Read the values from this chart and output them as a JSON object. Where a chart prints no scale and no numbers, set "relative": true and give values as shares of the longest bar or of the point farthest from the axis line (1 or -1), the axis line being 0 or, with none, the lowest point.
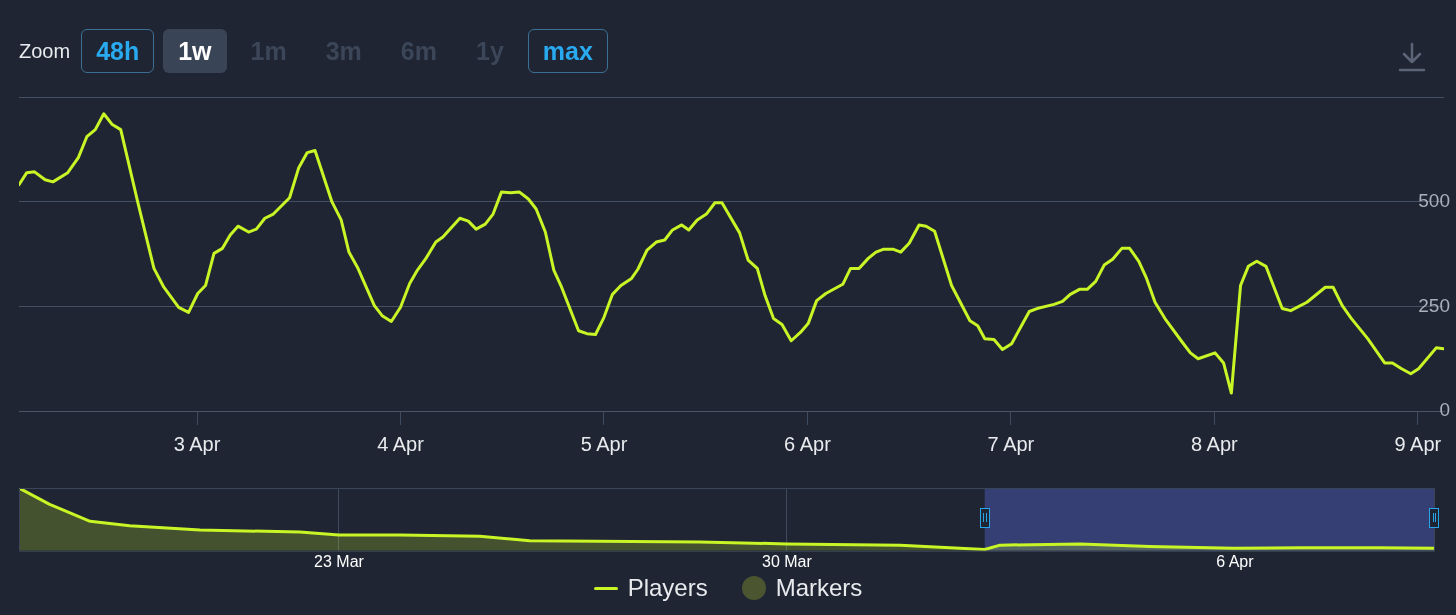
{
  "chart_data": [
    {
      "type": "line",
      "annotations": [
        "Zoom",
        "48h",
        "1w",
        "1m",
        "3m",
        "6m",
        "1y",
        "max"
      ],
      "xlim": [
        "--04-02T03:00",
        "--04-09T03:05"
      ],
      "xticks": [
        {
          "value": "--04-03",
          "label": "3 Apr"
        },
        {
          "value": "--04-04",
          "label": "4 Apr"
        },
        {
          "value": "--04-05",
          "label": "5 Apr"
        },
        {
          "value": "--04-06",
          "label": "6 Apr"
        },
        {
          "value": "--04-07",
          "label": "7 Apr"
        },
        {
          "value": "--04-08",
          "label": "8 Apr"
        },
        {
          "value": "--04-09",
          "label": "9 Apr"
        }
      ],
      "ylim": [
        0,
        750
      ],
      "yticks": [
        0,
        250,
        500,
        {
          "value": 750,
          "label": null
        }
      ],
      "grid": "y",
      "legend": "bottom",
      "marker": "none",
      "series": [
        {
          "name": "Players",
          "color": "#c8f526",
          "x": [
            "--04-02T03:00",
            "--04-02T03:55",
            "--04-02T04:50",
            "--04-02T06:05",
            "--04-02T07:00",
            "--04-02T08:45",
            "--04-02T10:00",
            "--04-02T11:00",
            "--04-02T12:00",
            "--04-02T13:00",
            "--04-02T14:00",
            "--04-02T15:00",
            "--04-02T17:00",
            "--04-02T18:55",
            "--04-02T20:05",
            "--04-02T21:50",
            "--04-02T23:00",
            "--04-03T00:05",
            "--04-03T01:00",
            "--04-03T02:00",
            "--04-03T03:00",
            "--04-03T03:55",
            "--04-03T04:50",
            "--04-03T06:05",
            "--04-03T07:00",
            "--04-03T08:00",
            "--04-03T09:00",
            "--04-03T10:55",
            "--04-03T12:00",
            "--04-03T13:00",
            "--04-03T13:55",
            "--04-03T15:55",
            "--04-03T17:00",
            "--04-03T17:55",
            "--04-03T18:55",
            "--04-03T20:55",
            "--04-03T21:50",
            "--04-03T22:55",
            "--04-04T00:00",
            "--04-04T01:05",
            "--04-04T02:00",
            "--04-04T03:00",
            "--04-04T04:10",
            "--04-04T05:00",
            "--04-04T07:00",
            "--04-04T08:00",
            "--04-04T08:55",
            "--04-04T10:00",
            "--04-04T10:55",
            "--04-04T11:55",
            "--04-04T13:00",
            "--04-04T14:00",
            "--04-04T15:05",
            "--04-04T16:00",
            "--04-04T17:05",
            "--04-04T18:05",
            "--04-04T19:00",
            "--04-04T21:00",
            "--04-04T22:00",
            "--04-04T23:00",
            "--04-05T00:00",
            "--04-05T01:00",
            "--04-05T02:00",
            "--04-05T03:15",
            "--04-05T04:00",
            "--04-05T05:05",
            "--04-05T06:10",
            "--04-05T07:10",
            "--04-05T08:05",
            "--04-05T09:10",
            "--04-05T10:00",
            "--04-05T11:00",
            "--04-05T12:05",
            "--04-05T13:05",
            "--04-05T13:55",
            "--04-05T16:00",
            "--04-05T17:00",
            "--04-05T18:05",
            "--04-05T19:00",
            "--04-05T20:00",
            "--04-05T21:00",
            "--04-05T22:05",
            "--04-05T23:10",
            "--04-06T00:05",
            "--04-06T01:05",
            "--04-06T02:10",
            "--04-06T04:10",
            "--04-06T05:05",
            "--04-06T06:05",
            "--04-06T07:10",
            "--04-06T08:05",
            "--04-06T09:00",
            "--04-06T10:05",
            "--04-06T11:00",
            "--04-06T12:00",
            "--04-06T13:10",
            "--04-06T14:00",
            "--04-06T15:00",
            "--04-06T17:00",
            "--04-06T19:10",
            "--04-06T20:05",
            "--04-06T20:55",
            "--04-06T22:00",
            "--04-06T23:00",
            "--04-07T00:05",
            "--04-07T02:10",
            "--04-07T03:05",
            "--04-07T05:05",
            "--04-07T06:05",
            "--04-07T07:00",
            "--04-07T08:05",
            "--04-07T09:00",
            "--04-07T10:00",
            "--04-07T11:00",
            "--04-07T12:00",
            "--04-07T13:05",
            "--04-07T14:00",
            "--04-07T15:05",
            "--04-07T16:00",
            "--04-07T17:00",
            "--04-07T18:10",
            "--04-07T20:05",
            "--04-07T21:10",
            "--04-07T22:05",
            "--04-08T00:05",
            "--04-08T01:05",
            "--04-08T02:00",
            "--04-08T03:05",
            "--04-08T04:00",
            "--04-08T05:00",
            "--04-08T06:05",
            "--04-08T08:00",
            "--04-08T09:00",
            "--04-08T10:55",
            "--04-08T13:05",
            "--04-08T14:00",
            "--04-08T15:05",
            "--04-08T16:10",
            "--04-08T18:05",
            "--04-08T20:05",
            "--04-08T21:00",
            "--04-08T22:05",
            "--04-08T23:10",
            "--04-09T00:05",
            "--04-09T02:10",
            "--04-09T03:00"
          ],
          "values": [
            541,
            570,
            572,
            553,
            548,
            570,
            606,
            656,
            673,
            711,
            685,
            673,
            500,
            341,
            296,
            248,
            236,
            281,
            300,
            377,
            389,
            421,
            442,
            428,
            435,
            461,
            471,
            510,
            582,
            618,
            623,
            500,
            457,
            380,
            344,
            252,
            228,
            214,
            248,
            305,
            337,
            365,
            404,
            416,
            461,
            454,
            435,
            447,
            471,
            524,
            522,
            524,
            507,
            483,
            428,
            337,
            296,
            192,
            185,
            183,
            224,
            279,
            300,
            317,
            339,
            385,
            404,
            409,
            433,
            445,
            433,
            457,
            471,
            498,
            498,
            426,
            361,
            341,
            276,
            221,
            207,
            168,
            188,
            209,
            264,
            281,
            303,
            341,
            341,
            365,
            380,
            387,
            387,
            380,
            401,
            445,
            442,
            430,
            300,
            216,
            204,
            173,
            171,
            147,
            161,
            238,
            245,
            255,
            262,
            279,
            291,
            291,
            310,
            349,
            363,
            389,
            389,
            358,
            317,
            260,
            221,
            168,
            139,
            125,
            139,
            115,
            43,
            300,
            346,
            358,
            346,
            245,
            240,
            260,
            296,
            296,
            252,
            221,
            173,
            115,
            115,
            101,
            89,
            101,
            151,
            149
          ]
        },
        {
          "name": "Markers",
          "color": "#4b5530",
          "type": "scatter"
        }
      ]
    },
    {
      "type": "area",
      "relative": true,
      "xlim": [
        "--03-18",
        "--04-09T02:40"
      ],
      "xticks": [
        {
          "value": "--03-23",
          "label": "23 Mar"
        },
        {
          "value": "--03-30",
          "label": "30 Mar"
        },
        {
          "value": "--04-06",
          "label": "6 Apr"
        }
      ],
      "grid": "x",
      "bands": [
        {
          "axis": "x",
          "from": "--04-02T02:10",
          "to": "--04-09T02:40",
          "color": "#363f73"
        }
      ],
      "series": [
        {
          "color": "#c8f526",
          "x": [
            "--03-18",
            "--03-18T11:30",
            "--03-19T02:40",
            "--03-19T17:30",
            "--03-20T19:55",
            "--03-22T09:20",
            "--03-23",
            "--03-23T22:50",
            "--03-25T04:50",
            "--03-25T23:30",
            "--03-28T15:20",
            "--03-30",
            "--03-31T18:30",
            "--04-01T13:10",
            "--04-02T02:10",
            "--04-02T07:55",
            "--04-03T13:55",
            "--04-04T16:05",
            "--04-05T23:30",
            "--04-07T00:30",
            "--04-08T06:30",
            "--04-09T02:40"
          ],
          "values": [
            1,
            0.74,
            0.47,
            0.4,
            0.33,
            0.3,
            0.25,
            0.25,
            0.23,
            0.16,
            0.14,
            0.11,
            0.09,
            0.05,
            0.02,
            0.09,
            0.11,
            0.07,
            0.04,
            0.05,
            0.05,
            0.04
          ]
        }
      ]
    }
  ]
}
